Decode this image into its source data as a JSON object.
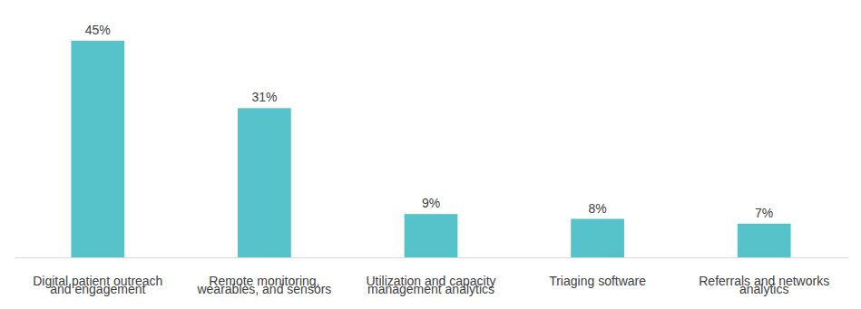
{
  "chart_data": {
    "type": "bar",
    "categories": [
      "Digital patient outreach\nand engagement",
      "Remote monitoring,\nwearables, and sensors",
      "Utilization and capacity\nmanagement analytics",
      "Triaging software",
      "Referrals and networks\nanalytics"
    ],
    "values": [
      45,
      31,
      9,
      8,
      7
    ],
    "value_labels": [
      "45%",
      "31%",
      "9%",
      "8%",
      "7%"
    ],
    "color": "#56c3cb",
    "data_labels": true,
    "tick_labels": "x"
  }
}
